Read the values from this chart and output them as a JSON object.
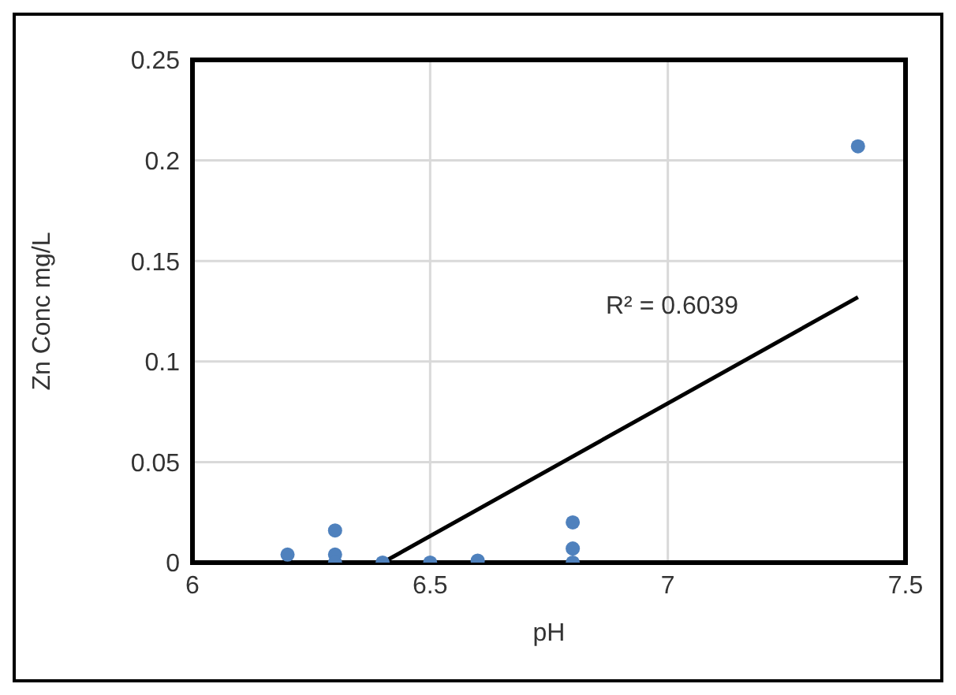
{
  "chart_data": {
    "type": "scatter",
    "xlabel": "pH",
    "ylabel": "Zn Conc mg/L",
    "x": [
      6.2,
      6.3,
      6.3,
      6.3,
      6.4,
      6.5,
      6.6,
      6.8,
      6.8,
      6.8,
      7.4
    ],
    "series": [
      {
        "color": "#4f81bd",
        "marker": "circle",
        "values": [
          0.004,
          0.016,
          0.004,
          0.0,
          0.0,
          0.0,
          0.001,
          0.02,
          0.007,
          0.0,
          0.207
        ]
      },
      {
        "type": "line",
        "marker": "none",
        "color": "#000000",
        "x": [
          6.4,
          7.4
        ],
        "values": [
          0.0,
          0.132
        ]
      }
    ],
    "xlim": [
      6,
      7.5
    ],
    "xticks": [
      6,
      6.5,
      7,
      7.5
    ],
    "ylim": [
      0,
      0.25
    ],
    "yticks": [
      0,
      0.05,
      0.1,
      0.15,
      0.2,
      0.25
    ],
    "annotations": [
      "R² = 0.6039"
    ],
    "grid": true,
    "line_style": "solid"
  }
}
